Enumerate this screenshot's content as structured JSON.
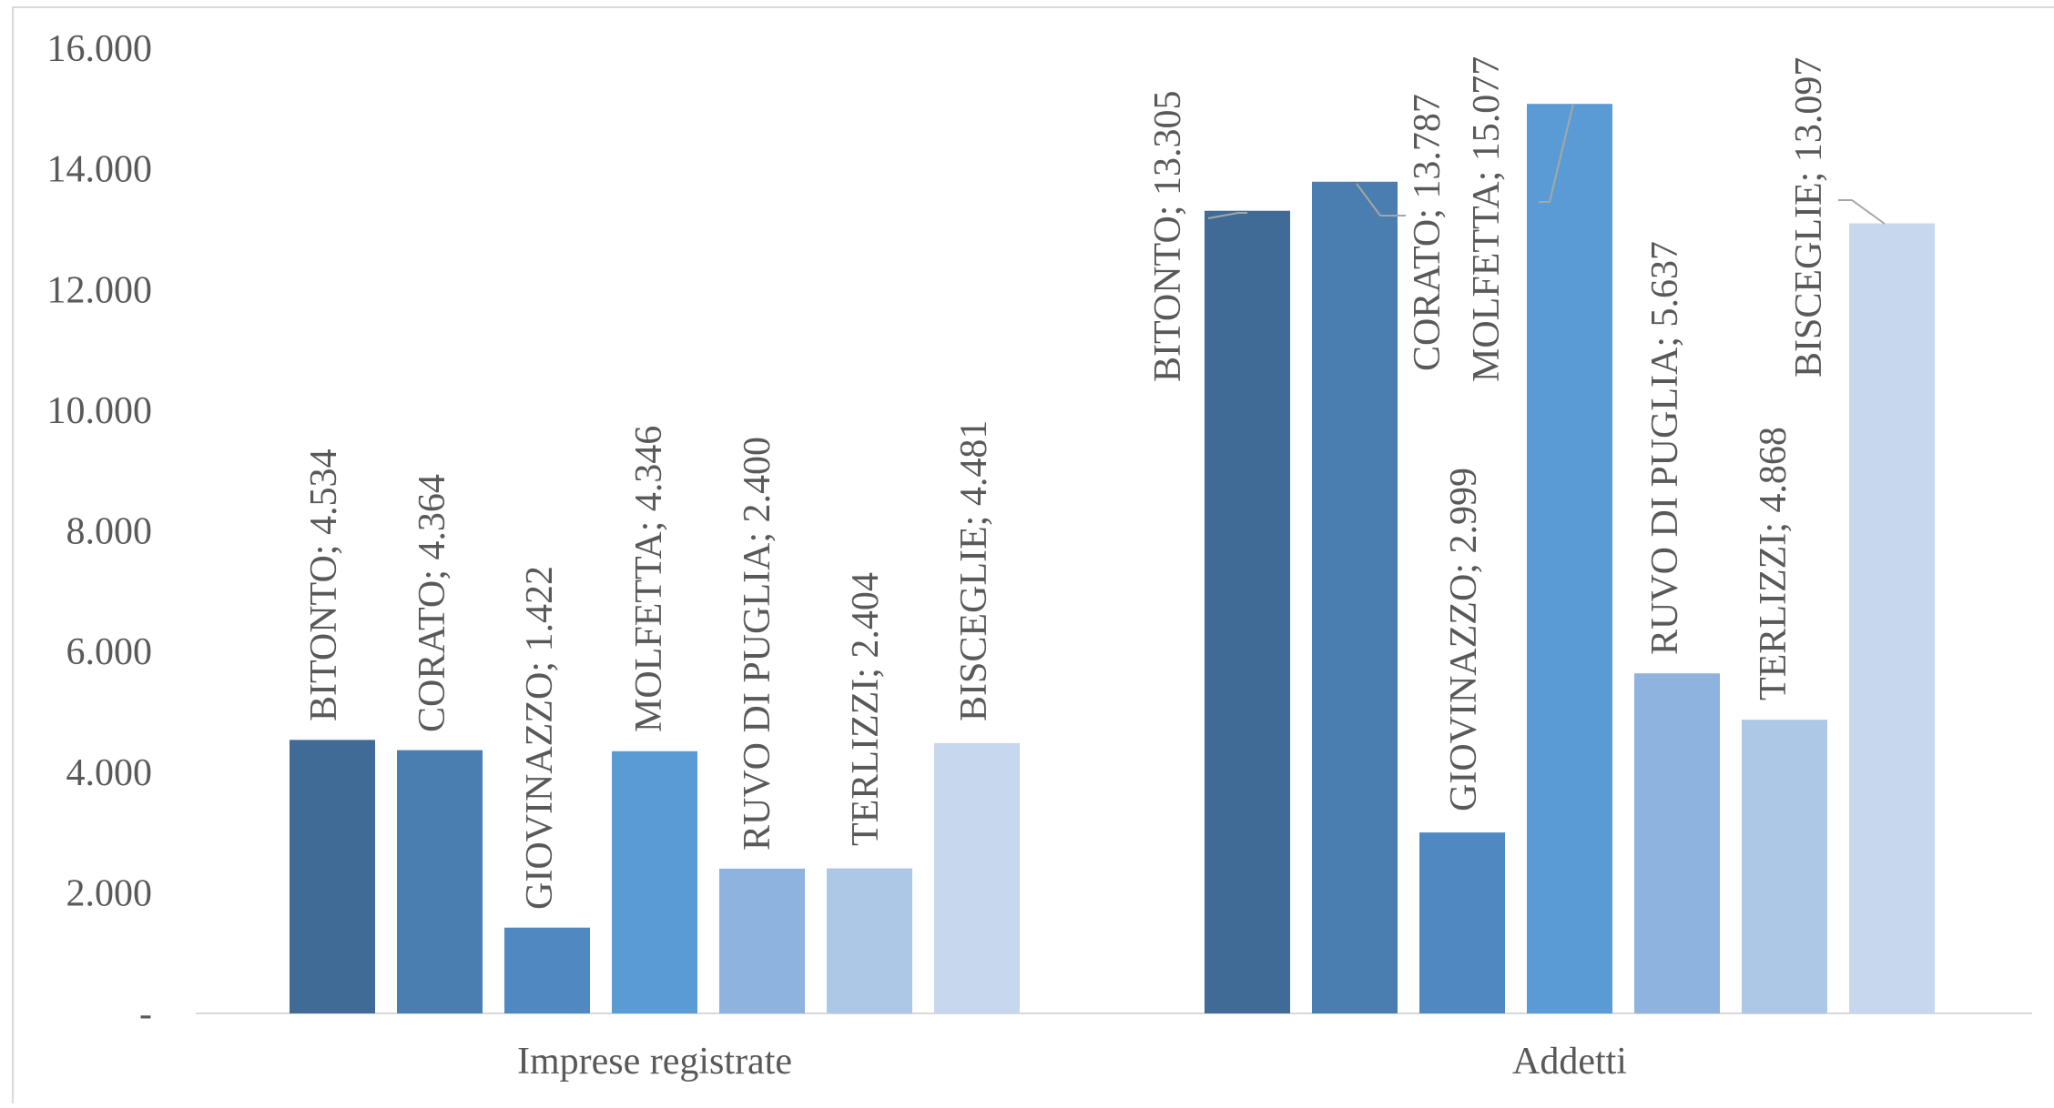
{
  "chart_data": {
    "type": "bar",
    "categories": [
      "Imprese registrate",
      "Addetti"
    ],
    "series": [
      {
        "name": "BITONTO",
        "values": [
          4534,
          13305
        ],
        "labels": [
          "4.534",
          "13.305"
        ]
      },
      {
        "name": "CORATO",
        "values": [
          4364,
          13787
        ],
        "labels": [
          "4.364",
          "13.787"
        ]
      },
      {
        "name": "GIOVINAZZO",
        "values": [
          1422,
          2999
        ],
        "labels": [
          "1.422",
          "2.999"
        ]
      },
      {
        "name": "MOLFETTA",
        "values": [
          4346,
          15077
        ],
        "labels": [
          "4.346",
          "15.077"
        ]
      },
      {
        "name": "RUVO DI PUGLIA",
        "values": [
          2400,
          5637
        ],
        "labels": [
          "2.400",
          "5.637"
        ]
      },
      {
        "name": "TERLIZZI",
        "values": [
          2404,
          4868
        ],
        "labels": [
          "2.404",
          "4.868"
        ]
      },
      {
        "name": "BISCEGLIE",
        "values": [
          4481,
          13097
        ],
        "labels": [
          "4.481",
          "13.097"
        ]
      }
    ],
    "colors": [
      "#3F6B96",
      "#4A7DB0",
      "#5089C2",
      "#5B9BD5",
      "#8EB3DE",
      "#ADC7E6",
      "#C7D7EE"
    ],
    "yticks": [
      {
        "value": 0,
        "label": "-"
      },
      {
        "value": 2000,
        "label": "2.000"
      },
      {
        "value": 4000,
        "label": "4.000"
      },
      {
        "value": 6000,
        "label": "6.000"
      },
      {
        "value": 8000,
        "label": "8.000"
      },
      {
        "value": 10000,
        "label": "10.000"
      },
      {
        "value": 12000,
        "label": "12.000"
      },
      {
        "value": 14000,
        "label": "14.000"
      },
      {
        "value": 16000,
        "label": "16.000"
      }
    ],
    "ylim": [
      0,
      16000
    ],
    "title": "",
    "xlabel": "",
    "ylabel": "",
    "grid": false,
    "legend": "none",
    "label_separator": ";  "
  }
}
